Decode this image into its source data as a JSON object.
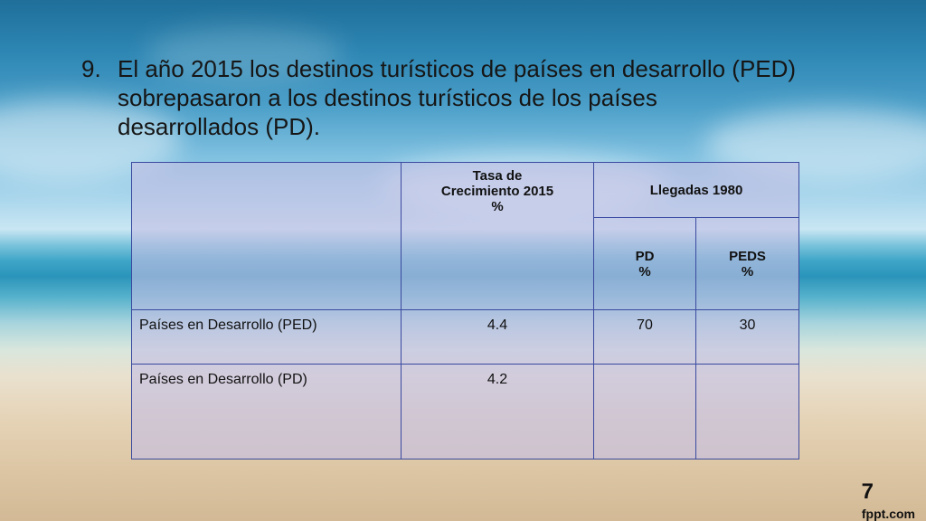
{
  "slide": {
    "number": "9.",
    "title": "El año 2015 los destinos turísticos de países en desarrollo (PED) sobrepasaron a los destinos turísticos  de los países desarrollados (PD).",
    "page_number": "7",
    "brand": "fppt.com"
  },
  "table": {
    "header_rate_line1": "Tasa  de",
    "header_rate_line2": "Crecimiento  2015",
    "header_rate_line3": "%",
    "header_arrivals": "Llegadas 1980",
    "sub_pd_line1": "PD",
    "sub_pd_line2": "%",
    "sub_peds_line1": "PEDS",
    "sub_peds_line2": "%",
    "rows": [
      {
        "label": "Países en Desarrollo (PED)",
        "rate": "4.4",
        "pd": "70",
        "peds": "30"
      },
      {
        "label": "Países en Desarrollo (PD)",
        "rate": "4.2",
        "pd": "",
        "peds": ""
      }
    ]
  }
}
